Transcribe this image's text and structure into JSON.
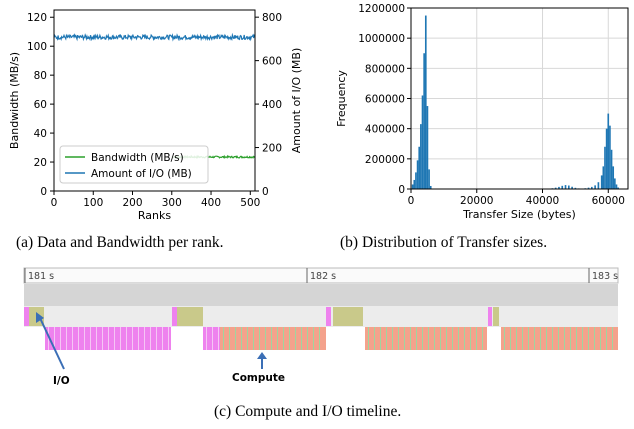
{
  "captions": {
    "a": "(a) Data and Bandwidth per rank.",
    "b": "(b) Distribution of Transfer sizes.",
    "c": "(c) Compute and I/O timeline."
  },
  "chart_data": [
    {
      "type": "line",
      "xlabel": "Ranks",
      "ylabel": "Bandwidth (MB/s)",
      "y2label": "Amount of I/O (MB)",
      "xlim": [
        0,
        512
      ],
      "ylim": [
        0,
        125
      ],
      "y2lim": [
        0,
        833
      ],
      "xticks": [
        "0",
        "100",
        "200",
        "300",
        "400",
        "500"
      ],
      "yticks": [
        "0",
        "20",
        "40",
        "60",
        "80",
        "100",
        "120"
      ],
      "y2ticks": [
        "0",
        "200",
        "400",
        "600",
        "800"
      ],
      "legend_position": "bottom-left",
      "grid": false,
      "series": [
        {
          "name": "Bandwidth (MB/s)",
          "axis": "left",
          "color": "#2ca02c",
          "x_range": [
            0,
            512
          ],
          "mean": 23.5,
          "jitter": 0.6
        },
        {
          "name": "Amount of I/O (MB)",
          "axis": "right",
          "color": "#1f77b4",
          "x_range": [
            0,
            512
          ],
          "mean": 708,
          "jitter": 10
        }
      ]
    },
    {
      "type": "bar",
      "xlabel": "Transfer Size (bytes)",
      "ylabel": "Frequency",
      "xlim": [
        0,
        66000
      ],
      "ylim": [
        0,
        1200000
      ],
      "xticks": [
        "0",
        "20000",
        "40000",
        "60000"
      ],
      "yticks": [
        "0",
        "200000",
        "400000",
        "600000",
        "800000",
        "1000000",
        "1200000"
      ],
      "grid": true,
      "color": "#1f77b4",
      "bins_x": [
        500,
        1000,
        1500,
        2000,
        2500,
        3000,
        3500,
        4000,
        4500,
        5000,
        5500,
        6000,
        43000,
        44000,
        45000,
        46000,
        47000,
        48000,
        49000,
        50000,
        51000,
        52000,
        53000,
        54000,
        55000,
        56000,
        57000,
        58000,
        58500,
        59000,
        59500,
        60000,
        60500,
        61000,
        61500,
        62000,
        62500,
        63000
      ],
      "bins_y": [
        30000,
        60000,
        110000,
        190000,
        280000,
        430000,
        620000,
        900000,
        1150000,
        550000,
        130000,
        20000,
        5000,
        9000,
        14000,
        21000,
        26000,
        23000,
        15000,
        8000,
        4000,
        3000,
        5000,
        9000,
        14000,
        24000,
        45000,
        90000,
        150000,
        280000,
        400000,
        500000,
        420000,
        260000,
        150000,
        70000,
        30000,
        10000
      ]
    },
    {
      "type": "timeline",
      "tick_labels": [
        "181 s",
        "182 s",
        "183 s"
      ],
      "legend_labels": [
        "I/O",
        "Compute"
      ],
      "colors": {
        "io": "#ee82ee",
        "io_detail": "#c9c98a",
        "compute": "#f4a28c",
        "compute_detail": "#9fd69f",
        "background": "#ececec",
        "arrow": "#3b6fb6"
      }
    }
  ]
}
